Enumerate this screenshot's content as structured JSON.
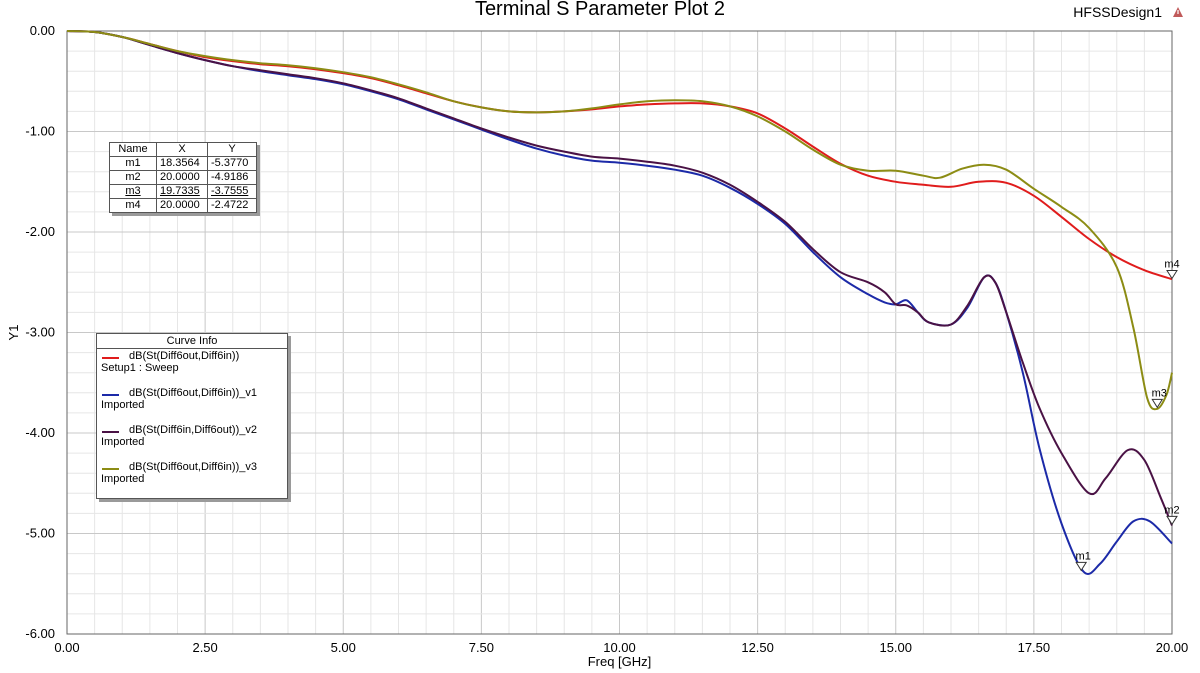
{
  "header": {
    "title": "Terminal S Parameter Plot 2",
    "design": "HFSSDesign1",
    "warning_icon": "warning-triangle-icon"
  },
  "chart_data": {
    "type": "line",
    "title": "Terminal S Parameter Plot 2",
    "xlabel": "Freq [GHz]",
    "ylabel": "Y1",
    "xlim": [
      0,
      20
    ],
    "ylim": [
      -6,
      0
    ],
    "xticks": [
      "0.00",
      "2.50",
      "5.00",
      "7.50",
      "10.00",
      "12.50",
      "15.00",
      "17.50",
      "20.00"
    ],
    "yticks": [
      "0.00",
      "-1.00",
      "-2.00",
      "-3.00",
      "-4.00",
      "-5.00",
      "-6.00"
    ],
    "grid": true,
    "legend_title": "Curve Info",
    "legend_position": "left",
    "series": [
      {
        "name": "dB(St(Diff6out,Diff6in))",
        "subtitle": "Setup1 : Sweep",
        "color": "#e01c1c",
        "points": [
          [
            0,
            0
          ],
          [
            0.5,
            -0.01
          ],
          [
            1,
            -0.06
          ],
          [
            1.5,
            -0.13
          ],
          [
            2,
            -0.2
          ],
          [
            2.5,
            -0.26
          ],
          [
            3,
            -0.3
          ],
          [
            3.5,
            -0.33
          ],
          [
            4,
            -0.35
          ],
          [
            4.5,
            -0.38
          ],
          [
            5,
            -0.42
          ],
          [
            5.5,
            -0.47
          ],
          [
            6,
            -0.54
          ],
          [
            6.5,
            -0.62
          ],
          [
            7,
            -0.7
          ],
          [
            7.5,
            -0.76
          ],
          [
            8,
            -0.8
          ],
          [
            8.5,
            -0.81
          ],
          [
            9,
            -0.8
          ],
          [
            9.5,
            -0.78
          ],
          [
            10,
            -0.75
          ],
          [
            10.5,
            -0.73
          ],
          [
            11,
            -0.72
          ],
          [
            11.5,
            -0.72
          ],
          [
            12,
            -0.75
          ],
          [
            12.5,
            -0.82
          ],
          [
            13,
            -0.97
          ],
          [
            13.5,
            -1.15
          ],
          [
            14,
            -1.32
          ],
          [
            14.5,
            -1.44
          ],
          [
            15,
            -1.5
          ],
          [
            15.5,
            -1.53
          ],
          [
            16,
            -1.55
          ],
          [
            16.5,
            -1.5
          ],
          [
            17,
            -1.51
          ],
          [
            17.5,
            -1.64
          ],
          [
            18,
            -1.85
          ],
          [
            18.5,
            -2.07
          ],
          [
            19,
            -2.25
          ],
          [
            19.5,
            -2.38
          ],
          [
            20,
            -2.47
          ]
        ]
      },
      {
        "name": "dB(St(Diff6out,Diff6in))_v1",
        "subtitle": "Imported",
        "color": "#1c2aa8",
        "points": [
          [
            0,
            0
          ],
          [
            0.5,
            -0.01
          ],
          [
            1,
            -0.06
          ],
          [
            1.5,
            -0.14
          ],
          [
            2,
            -0.22
          ],
          [
            2.5,
            -0.29
          ],
          [
            3,
            -0.35
          ],
          [
            3.5,
            -0.4
          ],
          [
            4,
            -0.44
          ],
          [
            4.5,
            -0.48
          ],
          [
            5,
            -0.53
          ],
          [
            5.5,
            -0.6
          ],
          [
            6,
            -0.68
          ],
          [
            6.5,
            -0.78
          ],
          [
            7,
            -0.88
          ],
          [
            7.5,
            -0.98
          ],
          [
            8,
            -1.08
          ],
          [
            8.5,
            -1.17
          ],
          [
            9,
            -1.24
          ],
          [
            9.5,
            -1.29
          ],
          [
            10,
            -1.31
          ],
          [
            10.5,
            -1.34
          ],
          [
            11,
            -1.38
          ],
          [
            11.5,
            -1.44
          ],
          [
            12,
            -1.56
          ],
          [
            12.5,
            -1.72
          ],
          [
            13,
            -1.92
          ],
          [
            13.5,
            -2.2
          ],
          [
            14,
            -2.45
          ],
          [
            14.5,
            -2.62
          ],
          [
            14.8,
            -2.7
          ],
          [
            15,
            -2.72
          ],
          [
            15.2,
            -2.68
          ],
          [
            15.4,
            -2.8
          ],
          [
            15.6,
            -2.9
          ],
          [
            16,
            -2.92
          ],
          [
            16.3,
            -2.75
          ],
          [
            16.6,
            -2.45
          ],
          [
            16.8,
            -2.5
          ],
          [
            17,
            -2.8
          ],
          [
            17.3,
            -3.4
          ],
          [
            17.6,
            -4.15
          ],
          [
            18,
            -4.9
          ],
          [
            18.4,
            -5.38
          ],
          [
            18.7,
            -5.3
          ],
          [
            19,
            -5.08
          ],
          [
            19.3,
            -4.88
          ],
          [
            19.6,
            -4.88
          ],
          [
            20,
            -5.1
          ]
        ]
      },
      {
        "name": "dB(St(Diff6in,Diff6out))_v2",
        "subtitle": "Imported",
        "color": "#4a1245",
        "points": [
          [
            0,
            0
          ],
          [
            0.5,
            -0.01
          ],
          [
            1,
            -0.06
          ],
          [
            1.5,
            -0.14
          ],
          [
            2,
            -0.22
          ],
          [
            2.5,
            -0.29
          ],
          [
            3,
            -0.35
          ],
          [
            3.5,
            -0.39
          ],
          [
            4,
            -0.43
          ],
          [
            4.5,
            -0.47
          ],
          [
            5,
            -0.52
          ],
          [
            5.5,
            -0.59
          ],
          [
            6,
            -0.67
          ],
          [
            6.5,
            -0.77
          ],
          [
            7,
            -0.87
          ],
          [
            7.5,
            -0.97
          ],
          [
            8,
            -1.06
          ],
          [
            8.5,
            -1.14
          ],
          [
            9,
            -1.2
          ],
          [
            9.5,
            -1.25
          ],
          [
            10,
            -1.27
          ],
          [
            10.5,
            -1.3
          ],
          [
            11,
            -1.34
          ],
          [
            11.5,
            -1.41
          ],
          [
            12,
            -1.53
          ],
          [
            12.5,
            -1.7
          ],
          [
            13,
            -1.9
          ],
          [
            13.5,
            -2.17
          ],
          [
            14,
            -2.4
          ],
          [
            14.5,
            -2.5
          ],
          [
            14.8,
            -2.6
          ],
          [
            15,
            -2.72
          ],
          [
            15.2,
            -2.73
          ],
          [
            15.4,
            -2.8
          ],
          [
            15.6,
            -2.9
          ],
          [
            16,
            -2.92
          ],
          [
            16.3,
            -2.73
          ],
          [
            16.6,
            -2.45
          ],
          [
            16.8,
            -2.5
          ],
          [
            17,
            -2.8
          ],
          [
            17.3,
            -3.3
          ],
          [
            17.6,
            -3.75
          ],
          [
            18,
            -4.2
          ],
          [
            18.5,
            -4.6
          ],
          [
            18.8,
            -4.45
          ],
          [
            19.2,
            -4.17
          ],
          [
            19.5,
            -4.27
          ],
          [
            19.8,
            -4.65
          ],
          [
            20,
            -4.92
          ]
        ]
      },
      {
        "name": "dB(St(Diff6out,Diff6in))_v3",
        "subtitle": "Imported",
        "color": "#8c8c14",
        "points": [
          [
            0,
            0
          ],
          [
            0.5,
            -0.01
          ],
          [
            1,
            -0.06
          ],
          [
            1.5,
            -0.13
          ],
          [
            2,
            -0.2
          ],
          [
            2.5,
            -0.25
          ],
          [
            3,
            -0.29
          ],
          [
            3.5,
            -0.32
          ],
          [
            4,
            -0.34
          ],
          [
            4.5,
            -0.37
          ],
          [
            5,
            -0.41
          ],
          [
            5.5,
            -0.46
          ],
          [
            6,
            -0.53
          ],
          [
            6.5,
            -0.61
          ],
          [
            7,
            -0.7
          ],
          [
            7.5,
            -0.76
          ],
          [
            8,
            -0.8
          ],
          [
            8.5,
            -0.81
          ],
          [
            9,
            -0.8
          ],
          [
            9.5,
            -0.77
          ],
          [
            10,
            -0.73
          ],
          [
            10.5,
            -0.7
          ],
          [
            11,
            -0.69
          ],
          [
            11.5,
            -0.7
          ],
          [
            12,
            -0.75
          ],
          [
            12.5,
            -0.85
          ],
          [
            13,
            -1.0
          ],
          [
            13.5,
            -1.18
          ],
          [
            14,
            -1.33
          ],
          [
            14.5,
            -1.39
          ],
          [
            15,
            -1.39
          ],
          [
            15.5,
            -1.44
          ],
          [
            15.8,
            -1.46
          ],
          [
            16.2,
            -1.37
          ],
          [
            16.6,
            -1.33
          ],
          [
            17,
            -1.38
          ],
          [
            17.5,
            -1.57
          ],
          [
            18,
            -1.75
          ],
          [
            18.5,
            -1.96
          ],
          [
            19,
            -2.35
          ],
          [
            19.3,
            -2.95
          ],
          [
            19.55,
            -3.65
          ],
          [
            19.73,
            -3.76
          ],
          [
            19.9,
            -3.62
          ],
          [
            20,
            -3.4
          ]
        ]
      }
    ],
    "markers": [
      {
        "name": "m1",
        "x": 18.3564,
        "y": -5.377,
        "series": 1
      },
      {
        "name": "m2",
        "x": 20.0,
        "y": -4.9186,
        "series": 2
      },
      {
        "name": "m3",
        "x": 19.7335,
        "y": -3.7555,
        "series": 3
      },
      {
        "name": "m4",
        "x": 20.0,
        "y": -2.4722,
        "series": 0
      }
    ]
  },
  "marker_table": {
    "headers": [
      "Name",
      "X",
      "Y"
    ],
    "rows": [
      {
        "name": "m1",
        "x": "18.3564",
        "y": "-5.3770"
      },
      {
        "name": "m2",
        "x": "20.0000",
        "y": "-4.9186"
      },
      {
        "name": "m3",
        "x": "19.7335",
        "y": "-3.7555"
      },
      {
        "name": "m4",
        "x": "20.0000",
        "y": "-2.4722"
      }
    ]
  },
  "curve_info": {
    "title": "Curve Info",
    "items": [
      {
        "label": "dB(St(Diff6out,Diff6in))",
        "sub": "Setup1 : Sweep",
        "color": "#e01c1c"
      },
      {
        "label": "dB(St(Diff6out,Diff6in))_v1",
        "sub": "Imported",
        "color": "#1c2aa8"
      },
      {
        "label": "dB(St(Diff6in,Diff6out))_v2",
        "sub": "Imported",
        "color": "#4a1245"
      },
      {
        "label": "dB(St(Diff6out,Diff6in))_v3",
        "sub": "Imported",
        "color": "#8c8c14"
      }
    ]
  }
}
